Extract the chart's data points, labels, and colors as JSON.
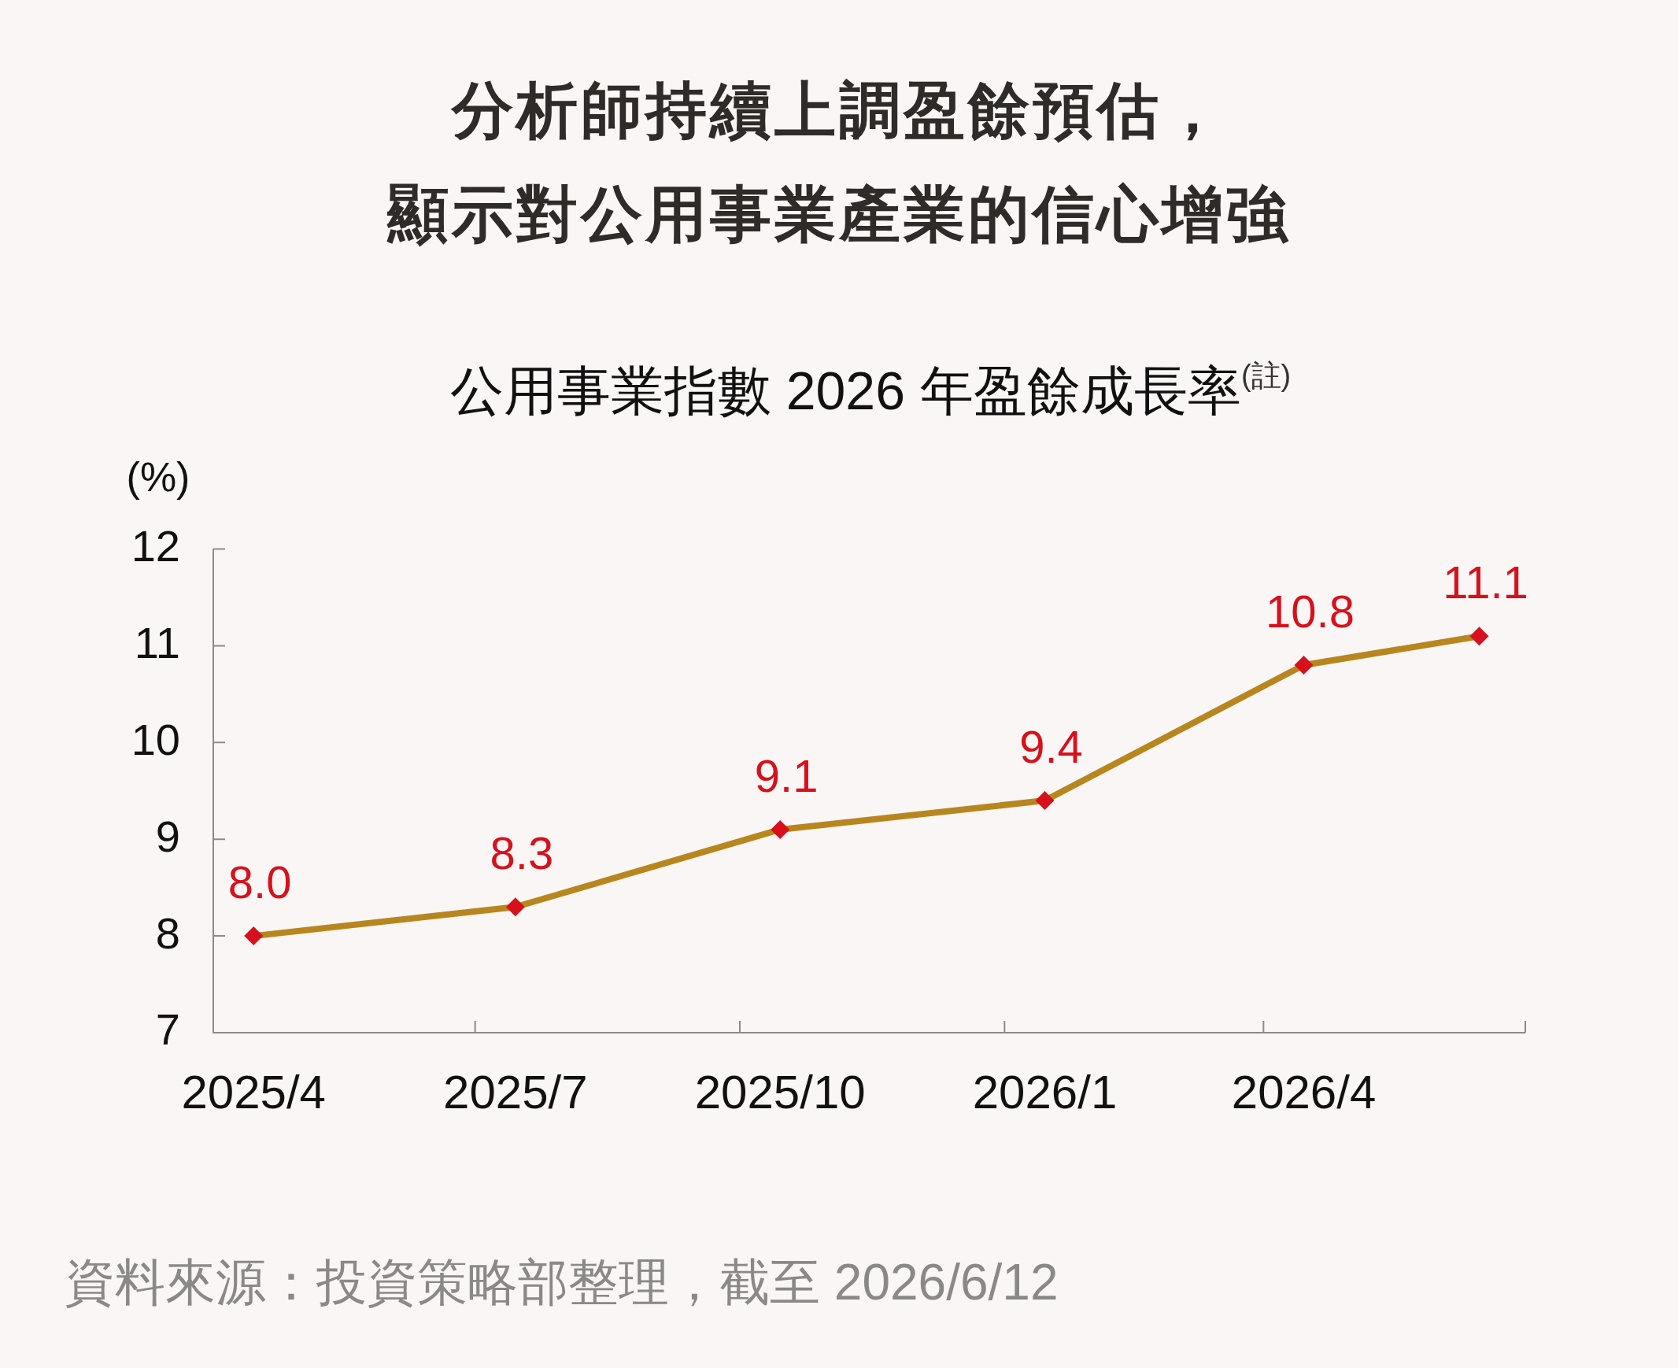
{
  "chart_data": {
    "type": "line",
    "title": "分析師持續上調盈餘預估，顯示對公用事業產業的信心增強",
    "subtitle": "公用事業指數 2026 年盈餘成長率$^{(註)}$",
    "ylabel": "(%)",
    "annotations": [
      "資料來源：投資策略部整理，截至 2026/6/12"
    ],
    "x": [
      "2025-04-15",
      "2025-07-15",
      "2025-10-15",
      "2026-01-15",
      "2026-04-15",
      "2026-06-15"
    ],
    "series": [
      {
        "color": "#b8861e",
        "colors": [
          "#d7111c",
          "#d7111c",
          "#d7111c",
          "#d7111c",
          "#d7111c",
          "#d7111c"
        ],
        "values": [
          8.0,
          8.3,
          9.1,
          9.4,
          10.8,
          11.1
        ],
        "value_labels": [
          "8.0",
          "8.3",
          "9.1",
          "9.4",
          "10.8",
          "11.1"
        ]
      }
    ],
    "xlim": [
      "2025-04-01",
      "2026-07-01"
    ],
    "xticks": [
      {
        "value": "2025-04-15",
        "label": "2025/4"
      },
      {
        "value": "2025-07-01",
        "label": null
      },
      {
        "value": "2025-07-15",
        "label": "2025/7"
      },
      {
        "value": "2025-10-01",
        "label": null
      },
      {
        "value": "2025-10-15",
        "label": "2025/10"
      },
      {
        "value": "2026-01-01",
        "label": null
      },
      {
        "value": "2026-01-15",
        "label": "2026/1"
      },
      {
        "value": "2026-04-01",
        "label": null
      },
      {
        "value": "2026-04-15",
        "label": "2026/4"
      },
      {
        "value": "2026-07-01",
        "label": null
      }
    ],
    "ylim": [
      7,
      12
    ],
    "yticks": [
      7,
      8,
      9,
      10,
      11,
      12
    ],
    "marker": "diamond",
    "line_style": "solid"
  }
}
